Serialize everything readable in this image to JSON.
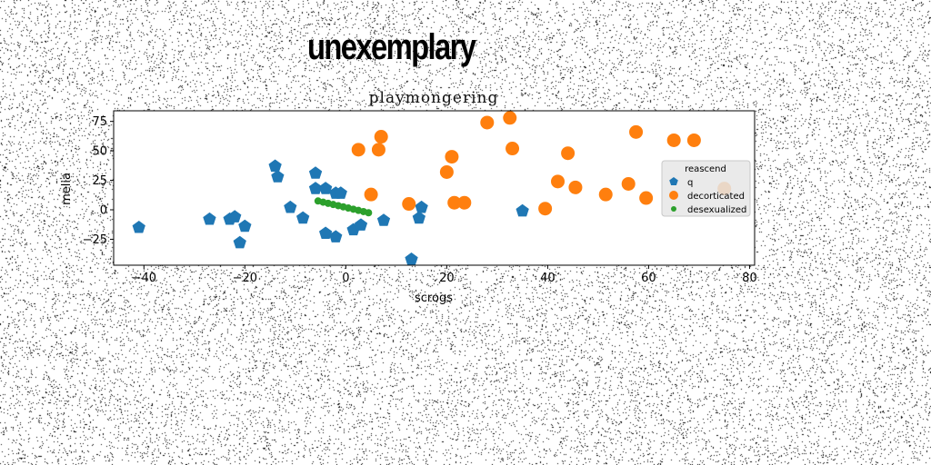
{
  "suptitle": "unexemplary",
  "chart_data": {
    "type": "scatter",
    "title": "playmongering",
    "xlabel": "scrogs",
    "ylabel": "melia",
    "xlim": [
      -46,
      81
    ],
    "ylim": [
      -47,
      84
    ],
    "xticks": [
      -40,
      -20,
      0,
      20,
      40,
      60,
      80
    ],
    "xtick_labels": [
      "−40",
      "−20",
      "0",
      "20",
      "40",
      "60",
      "80"
    ],
    "yticks": [
      -25,
      0,
      25,
      50,
      75
    ],
    "ytick_labels": [
      "−25",
      "0",
      "25",
      "50",
      "75"
    ],
    "grid": false,
    "legend": {
      "title": "reascend",
      "position": "right"
    },
    "series": [
      {
        "name": "q",
        "color": "#1f77b4",
        "marker": "pentagon",
        "points": [
          [
            -41,
            -15
          ],
          [
            -27,
            -8
          ],
          [
            -23,
            -8
          ],
          [
            -22,
            -6
          ],
          [
            -20,
            -14
          ],
          [
            -21,
            -28
          ],
          [
            -14,
            37
          ],
          [
            -13.5,
            28
          ],
          [
            -11,
            2
          ],
          [
            -8.5,
            -7
          ],
          [
            -6,
            18
          ],
          [
            -6,
            31
          ],
          [
            -4,
            18
          ],
          [
            -4,
            -20
          ],
          [
            -2,
            14
          ],
          [
            -1,
            14
          ],
          [
            -2,
            -23
          ],
          [
            1.5,
            -17
          ],
          [
            3,
            -13
          ],
          [
            7.5,
            -9
          ],
          [
            13,
            -42
          ],
          [
            14.5,
            -7
          ],
          [
            15,
            2
          ],
          [
            35,
            -1
          ]
        ]
      },
      {
        "name": "decorticated",
        "color": "#ff7f0e",
        "marker": "circle",
        "points": [
          [
            2.5,
            51
          ],
          [
            7,
            62
          ],
          [
            6.5,
            51
          ],
          [
            5,
            13
          ],
          [
            12.5,
            5
          ],
          [
            20,
            32
          ],
          [
            21,
            45
          ],
          [
            21.5,
            6
          ],
          [
            23.5,
            6
          ],
          [
            28,
            74
          ],
          [
            32.5,
            78
          ],
          [
            33,
            52
          ],
          [
            39.5,
            1
          ],
          [
            42,
            24
          ],
          [
            44,
            48
          ],
          [
            45.5,
            19
          ],
          [
            51.5,
            13
          ],
          [
            56,
            22
          ],
          [
            57.5,
            66
          ],
          [
            59.5,
            10
          ],
          [
            65,
            59
          ],
          [
            69,
            59
          ],
          [
            75,
            18
          ]
        ]
      },
      {
        "name": "desexualized",
        "color": "#2ca02c",
        "marker": "dot",
        "points": [
          [
            -5.5,
            7.5
          ],
          [
            -4.5,
            6.5
          ],
          [
            -3.5,
            5.5
          ],
          [
            -2.5,
            4.5
          ],
          [
            -1.5,
            3.5
          ],
          [
            -0.5,
            2.5
          ],
          [
            0.5,
            1.5
          ],
          [
            1.5,
            0.5
          ],
          [
            2.5,
            -0.5
          ],
          [
            3.5,
            -1.5
          ],
          [
            4.5,
            -2.5
          ]
        ]
      }
    ]
  }
}
